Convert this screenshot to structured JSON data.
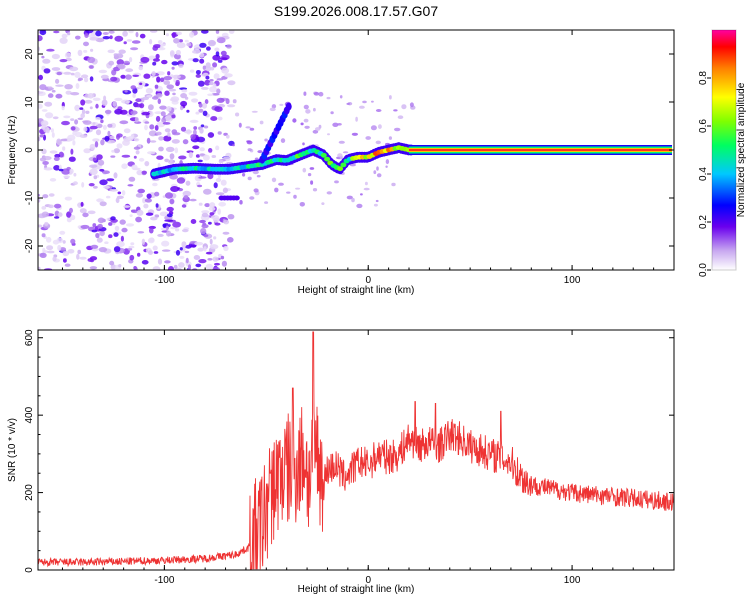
{
  "chart_data": [
    {
      "type": "heatmap",
      "title": "S199.2026.008.17.57.G07",
      "xlabel": "Height of straight line (km)",
      "ylabel": "Frequency (Hz)",
      "xlim": [
        -162,
        150
      ],
      "ylim": [
        -25,
        25
      ],
      "xticks": [
        -100,
        0,
        100
      ],
      "yticks": [
        20,
        10,
        0,
        -10,
        -20
      ],
      "ytick_labels": [
        "20",
        "10",
        "0",
        "-10",
        "-20"
      ],
      "colorbar": {
        "label": "Normalized spectral amplitude",
        "range": [
          0,
          1
        ],
        "ticks": [
          0.0,
          0.2,
          0.4,
          0.6,
          0.8
        ],
        "tick_labels": [
          "0.0",
          "0.2",
          "0.4",
          "0.6",
          "0.8"
        ]
      },
      "ridge": {
        "x": [
          -105,
          -95,
          -85,
          -75,
          -68,
          -60,
          -52,
          -45,
          -40,
          -33,
          -27,
          -22,
          -18,
          -14,
          -10,
          -5,
          0,
          5,
          10,
          15,
          20,
          150
        ],
        "frequency": [
          -5,
          -4,
          -3.8,
          -4,
          -4,
          -3.5,
          -3,
          -2,
          -2.2,
          -1,
          0,
          -1,
          -3,
          -4,
          -2,
          -1.5,
          -1.5,
          -0.5,
          0,
          0.5,
          0,
          0
        ],
        "amplitude": [
          0.45,
          0.5,
          0.5,
          0.45,
          0.45,
          0.5,
          0.55,
          0.55,
          0.5,
          0.6,
          0.55,
          0.55,
          0.65,
          0.6,
          0.55,
          0.7,
          0.9,
          0.85,
          0.9,
          0.75,
          0.9,
          0.9
        ]
      }
    },
    {
      "type": "line",
      "xlabel": "Height of straight line (km)",
      "ylabel": "SNR (10 * v/v)",
      "xlim": [
        -162,
        150
      ],
      "ylim": [
        0,
        620
      ],
      "xticks": [
        -100,
        0,
        100
      ],
      "yticks": [
        0,
        200,
        400,
        600
      ],
      "color": "#ee3333",
      "series": [
        {
          "name": "SNR",
          "x": [
            -162,
            -140,
            -120,
            -100,
            -80,
            -65,
            -58,
            -52,
            -48,
            -44,
            -40,
            -37,
            -34,
            -31,
            -29,
            -27,
            -25,
            -22,
            -20,
            -16,
            -12,
            -8,
            -4,
            0,
            5,
            10,
            15,
            20,
            25,
            30,
            35,
            40,
            45,
            50,
            55,
            60,
            65,
            70,
            75,
            80,
            90,
            100,
            110,
            120,
            130,
            140,
            150
          ],
          "y": [
            20,
            20,
            22,
            25,
            30,
            40,
            60,
            120,
            200,
            240,
            260,
            250,
            280,
            300,
            220,
            330,
            300,
            220,
            260,
            270,
            240,
            260,
            280,
            270,
            300,
            290,
            300,
            340,
            320,
            330,
            320,
            350,
            340,
            320,
            310,
            300,
            290,
            280,
            240,
            220,
            210,
            200,
            195,
            190,
            185,
            180,
            175
          ]
        }
      ],
      "spikes": [
        {
          "x": -48,
          "y": 250
        },
        {
          "x": -37,
          "y": 470
        },
        {
          "x": -27,
          "y": 615
        },
        {
          "x": 23,
          "y": 435
        },
        {
          "x": 33,
          "y": 430
        },
        {
          "x": 65,
          "y": 410
        }
      ]
    }
  ]
}
